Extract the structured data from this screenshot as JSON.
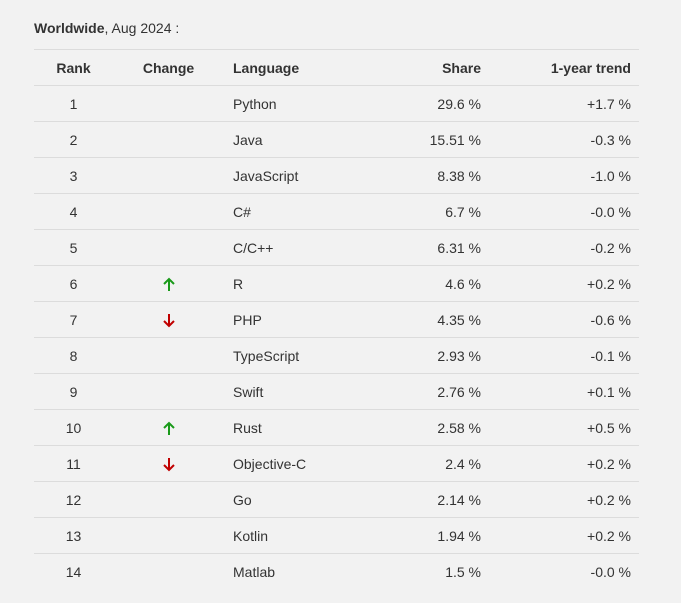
{
  "caption": {
    "region": "Worldwide",
    "rest": ", Aug 2024 :"
  },
  "columns": {
    "rank": "Rank",
    "change": "Change",
    "language": "Language",
    "share": "Share",
    "trend": "1-year trend"
  },
  "colors": {
    "up": "#1a9a1a",
    "down": "#c00000"
  },
  "rows": [
    {
      "rank": "1",
      "change": "",
      "language": "Python",
      "share": "29.6 %",
      "trend": "+1.7 %"
    },
    {
      "rank": "2",
      "change": "",
      "language": "Java",
      "share": "15.51 %",
      "trend": "-0.3 %"
    },
    {
      "rank": "3",
      "change": "",
      "language": "JavaScript",
      "share": "8.38 %",
      "trend": "-1.0 %"
    },
    {
      "rank": "4",
      "change": "",
      "language": "C#",
      "share": "6.7 %",
      "trend": "-0.0 %"
    },
    {
      "rank": "5",
      "change": "",
      "language": "C/C++",
      "share": "6.31 %",
      "trend": "-0.2 %"
    },
    {
      "rank": "6",
      "change": "up",
      "language": "R",
      "share": "4.6 %",
      "trend": "+0.2 %"
    },
    {
      "rank": "7",
      "change": "down",
      "language": "PHP",
      "share": "4.35 %",
      "trend": "-0.6 %"
    },
    {
      "rank": "8",
      "change": "",
      "language": "TypeScript",
      "share": "2.93 %",
      "trend": "-0.1 %"
    },
    {
      "rank": "9",
      "change": "",
      "language": "Swift",
      "share": "2.76 %",
      "trend": "+0.1 %"
    },
    {
      "rank": "10",
      "change": "up",
      "language": "Rust",
      "share": "2.58 %",
      "trend": "+0.5 %"
    },
    {
      "rank": "11",
      "change": "down",
      "language": "Objective-C",
      "share": "2.4 %",
      "trend": "+0.2 %"
    },
    {
      "rank": "12",
      "change": "",
      "language": "Go",
      "share": "2.14 %",
      "trend": "+0.2 %"
    },
    {
      "rank": "13",
      "change": "",
      "language": "Kotlin",
      "share": "1.94 %",
      "trend": "+0.2 %"
    },
    {
      "rank": "14",
      "change": "",
      "language": "Matlab",
      "share": "1.5 %",
      "trend": "-0.0 %"
    }
  ]
}
